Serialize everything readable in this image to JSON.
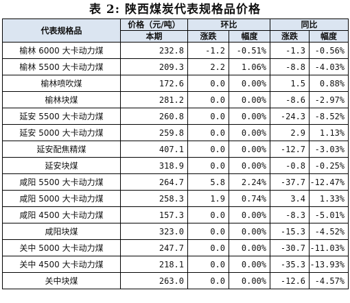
{
  "title": "表 2: 陕西煤炭代表规格品价格",
  "headers": {
    "product": "代表规格品",
    "price": "价格（元/吨）",
    "hb": "环比",
    "tb": "同比",
    "current": "本期",
    "change": "涨跌",
    "rate": "幅度",
    "change2": "涨跌",
    "rate2": "幅度"
  },
  "rows": [
    {
      "name": "榆林 6000 大卡动力煤",
      "price": "232.8",
      "hb_change": "-1.2",
      "hb_rate": "-0.51%",
      "tb_change": "-1.3",
      "tb_rate": "-0.56%"
    },
    {
      "name": "榆林 5500 大卡动力煤",
      "price": "209.3",
      "hb_change": "2.2",
      "hb_rate": "1.06%",
      "tb_change": "-8.8",
      "tb_rate": "-4.03%"
    },
    {
      "name": "榆林喷吹煤",
      "price": "172.6",
      "hb_change": "0.0",
      "hb_rate": "0.00%",
      "tb_change": "1.5",
      "tb_rate": "0.88%"
    },
    {
      "name": "榆林块煤",
      "price": "281.2",
      "hb_change": "0.0",
      "hb_rate": "0.00%",
      "tb_change": "-8.6",
      "tb_rate": "-2.97%"
    },
    {
      "name": "延安 5500 大卡动力煤",
      "price": "260.8",
      "hb_change": "0.0",
      "hb_rate": "0.00%",
      "tb_change": "-24.3",
      "tb_rate": "-8.52%"
    },
    {
      "name": "延安 5000 大卡动力煤",
      "price": "259.8",
      "hb_change": "0.0",
      "hb_rate": "0.00%",
      "tb_change": "2.9",
      "tb_rate": "1.13%"
    },
    {
      "name": "延安配焦精煤",
      "price": "407.1",
      "hb_change": "0.0",
      "hb_rate": "0.00%",
      "tb_change": "-12.7",
      "tb_rate": "-3.03%"
    },
    {
      "name": "延安块煤",
      "price": "318.9",
      "hb_change": "0.0",
      "hb_rate": "0.00%",
      "tb_change": "-0.8",
      "tb_rate": "-0.25%"
    },
    {
      "name": "咸阳 5500 大卡动力煤",
      "price": "264.7",
      "hb_change": "5.8",
      "hb_rate": "2.24%",
      "tb_change": "-37.7",
      "tb_rate": "-12.47%"
    },
    {
      "name": "咸阳 5000 大卡动力煤",
      "price": "258.3",
      "hb_change": "1.9",
      "hb_rate": "0.74%",
      "tb_change": "3.4",
      "tb_rate": "1.33%"
    },
    {
      "name": "咸阳 4500 大卡动力煤",
      "price": "157.3",
      "hb_change": "0.0",
      "hb_rate": "0.00%",
      "tb_change": "-8.3",
      "tb_rate": "-5.01%"
    },
    {
      "name": "咸阳块煤",
      "price": "323.0",
      "hb_change": "0.0",
      "hb_rate": "0.00%",
      "tb_change": "-15.3",
      "tb_rate": "-4.52%"
    },
    {
      "name": "关中 5000 大卡动力煤",
      "price": "247.7",
      "hb_change": "0.0",
      "hb_rate": "0.00%",
      "tb_change": "-30.7",
      "tb_rate": "-11.03%"
    },
    {
      "name": "关中 4500 大卡动力煤",
      "price": "218.1",
      "hb_change": "0.0",
      "hb_rate": "0.00%",
      "tb_change": "-35.3",
      "tb_rate": "-13.93%"
    },
    {
      "name": "关中块煤",
      "price": "263.0",
      "hb_change": "0.0",
      "hb_rate": "0.00%",
      "tb_change": "-12.6",
      "tb_rate": "-4.57%"
    }
  ]
}
